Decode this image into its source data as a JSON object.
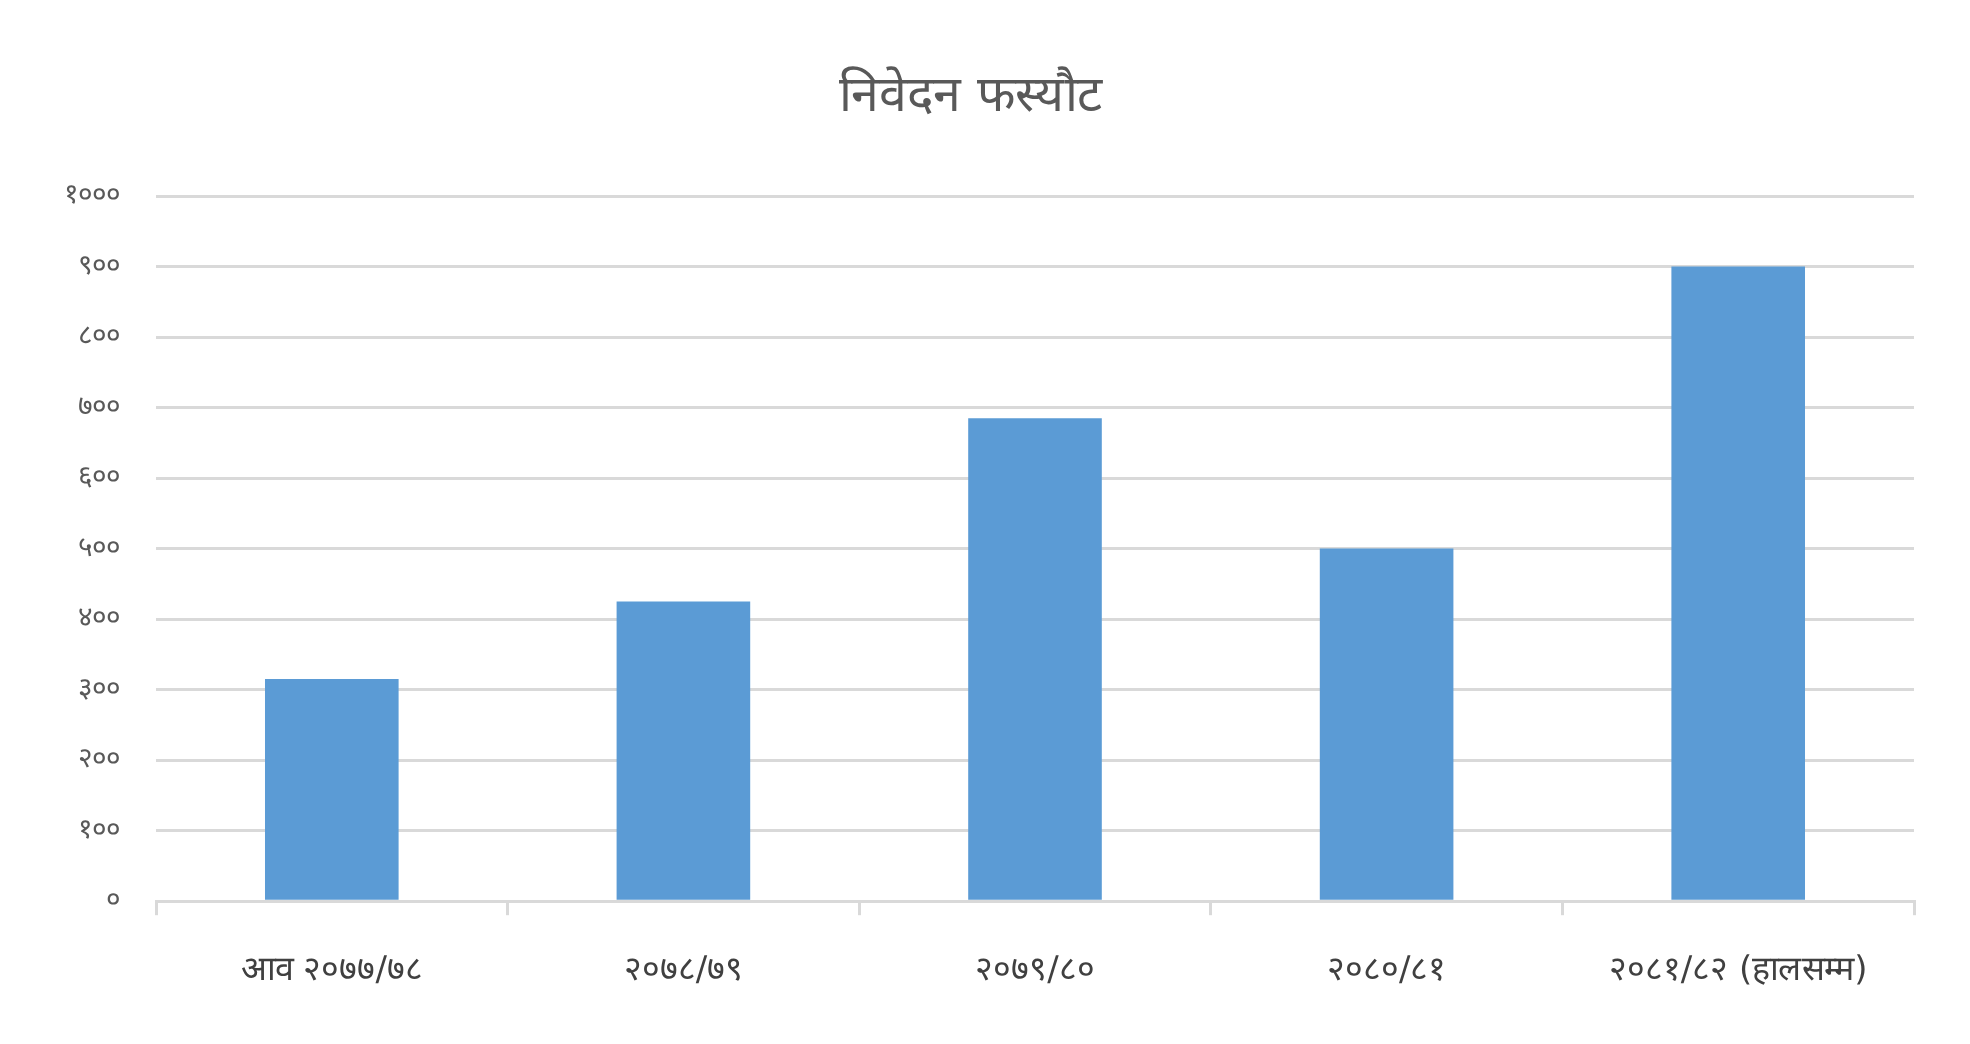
{
  "chart_data": {
    "type": "bar",
    "title": "निवेदन फस्यौट",
    "categories": [
      "आव २०७७/७८",
      "२०७८/७९",
      "२०७९/८०",
      "२०८०/८१",
      "२०८१/८२ (हालसम्म)"
    ],
    "values": [
      315,
      425,
      685,
      500,
      900
    ],
    "color": "#5b9bd5",
    "ylim": [
      0,
      1000
    ],
    "yticks": [
      {
        "value": 0,
        "label": "०"
      },
      {
        "value": 100,
        "label": "१००"
      },
      {
        "value": 200,
        "label": "२००"
      },
      {
        "value": 300,
        "label": "३००"
      },
      {
        "value": 400,
        "label": "४००"
      },
      {
        "value": 500,
        "label": "५००"
      },
      {
        "value": 600,
        "label": "६००"
      },
      {
        "value": 700,
        "label": "७००"
      },
      {
        "value": 800,
        "label": "८००"
      },
      {
        "value": 900,
        "label": "९००"
      },
      {
        "value": 1000,
        "label": "१०००"
      }
    ],
    "grid": "y"
  }
}
